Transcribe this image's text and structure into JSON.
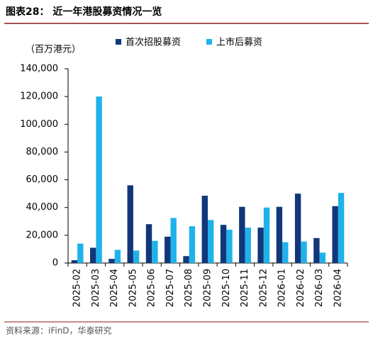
{
  "chart_data": {
    "type": "bar",
    "title": "图表28：  近一年港股募资情况一览",
    "unit_label": "（百万港元）",
    "source": "资料来源：iFinD，华泰研究",
    "categories": [
      "2025-02",
      "2025-03",
      "2025-04",
      "2025-05",
      "2025-06",
      "2025-07",
      "2025-08",
      "2025-09",
      "2025-10",
      "2025-11",
      "2025-12",
      "2026-01",
      "2026-02",
      "2026-03",
      "2026-04"
    ],
    "series": [
      {
        "name": "首次招股募资",
        "color": "#11377a",
        "values": [
          2000,
          11000,
          3000,
          56000,
          28000,
          19000,
          5000,
          48500,
          27500,
          40500,
          25500,
          40500,
          50000,
          18000,
          41000
        ]
      },
      {
        "name": "上市后募资",
        "color": "#1fb2ea",
        "values": [
          14000,
          120000,
          9500,
          9000,
          16000,
          32500,
          26500,
          31000,
          24000,
          25500,
          40000,
          15000,
          15500,
          7500,
          50500
        ]
      }
    ],
    "ylim": [
      0,
      140000
    ],
    "yticks": [
      0,
      {
        "value": 20000,
        "label": "20,000"
      },
      {
        "value": 40000,
        "label": "40,000"
      },
      {
        "value": 60000,
        "label": "60,000"
      },
      {
        "value": 80000,
        "label": "80,000"
      },
      {
        "value": 100000,
        "label": "100,000"
      },
      {
        "value": 120000,
        "label": "120,000"
      },
      {
        "value": 140000,
        "label": "140,000"
      }
    ],
    "grid": false
  }
}
